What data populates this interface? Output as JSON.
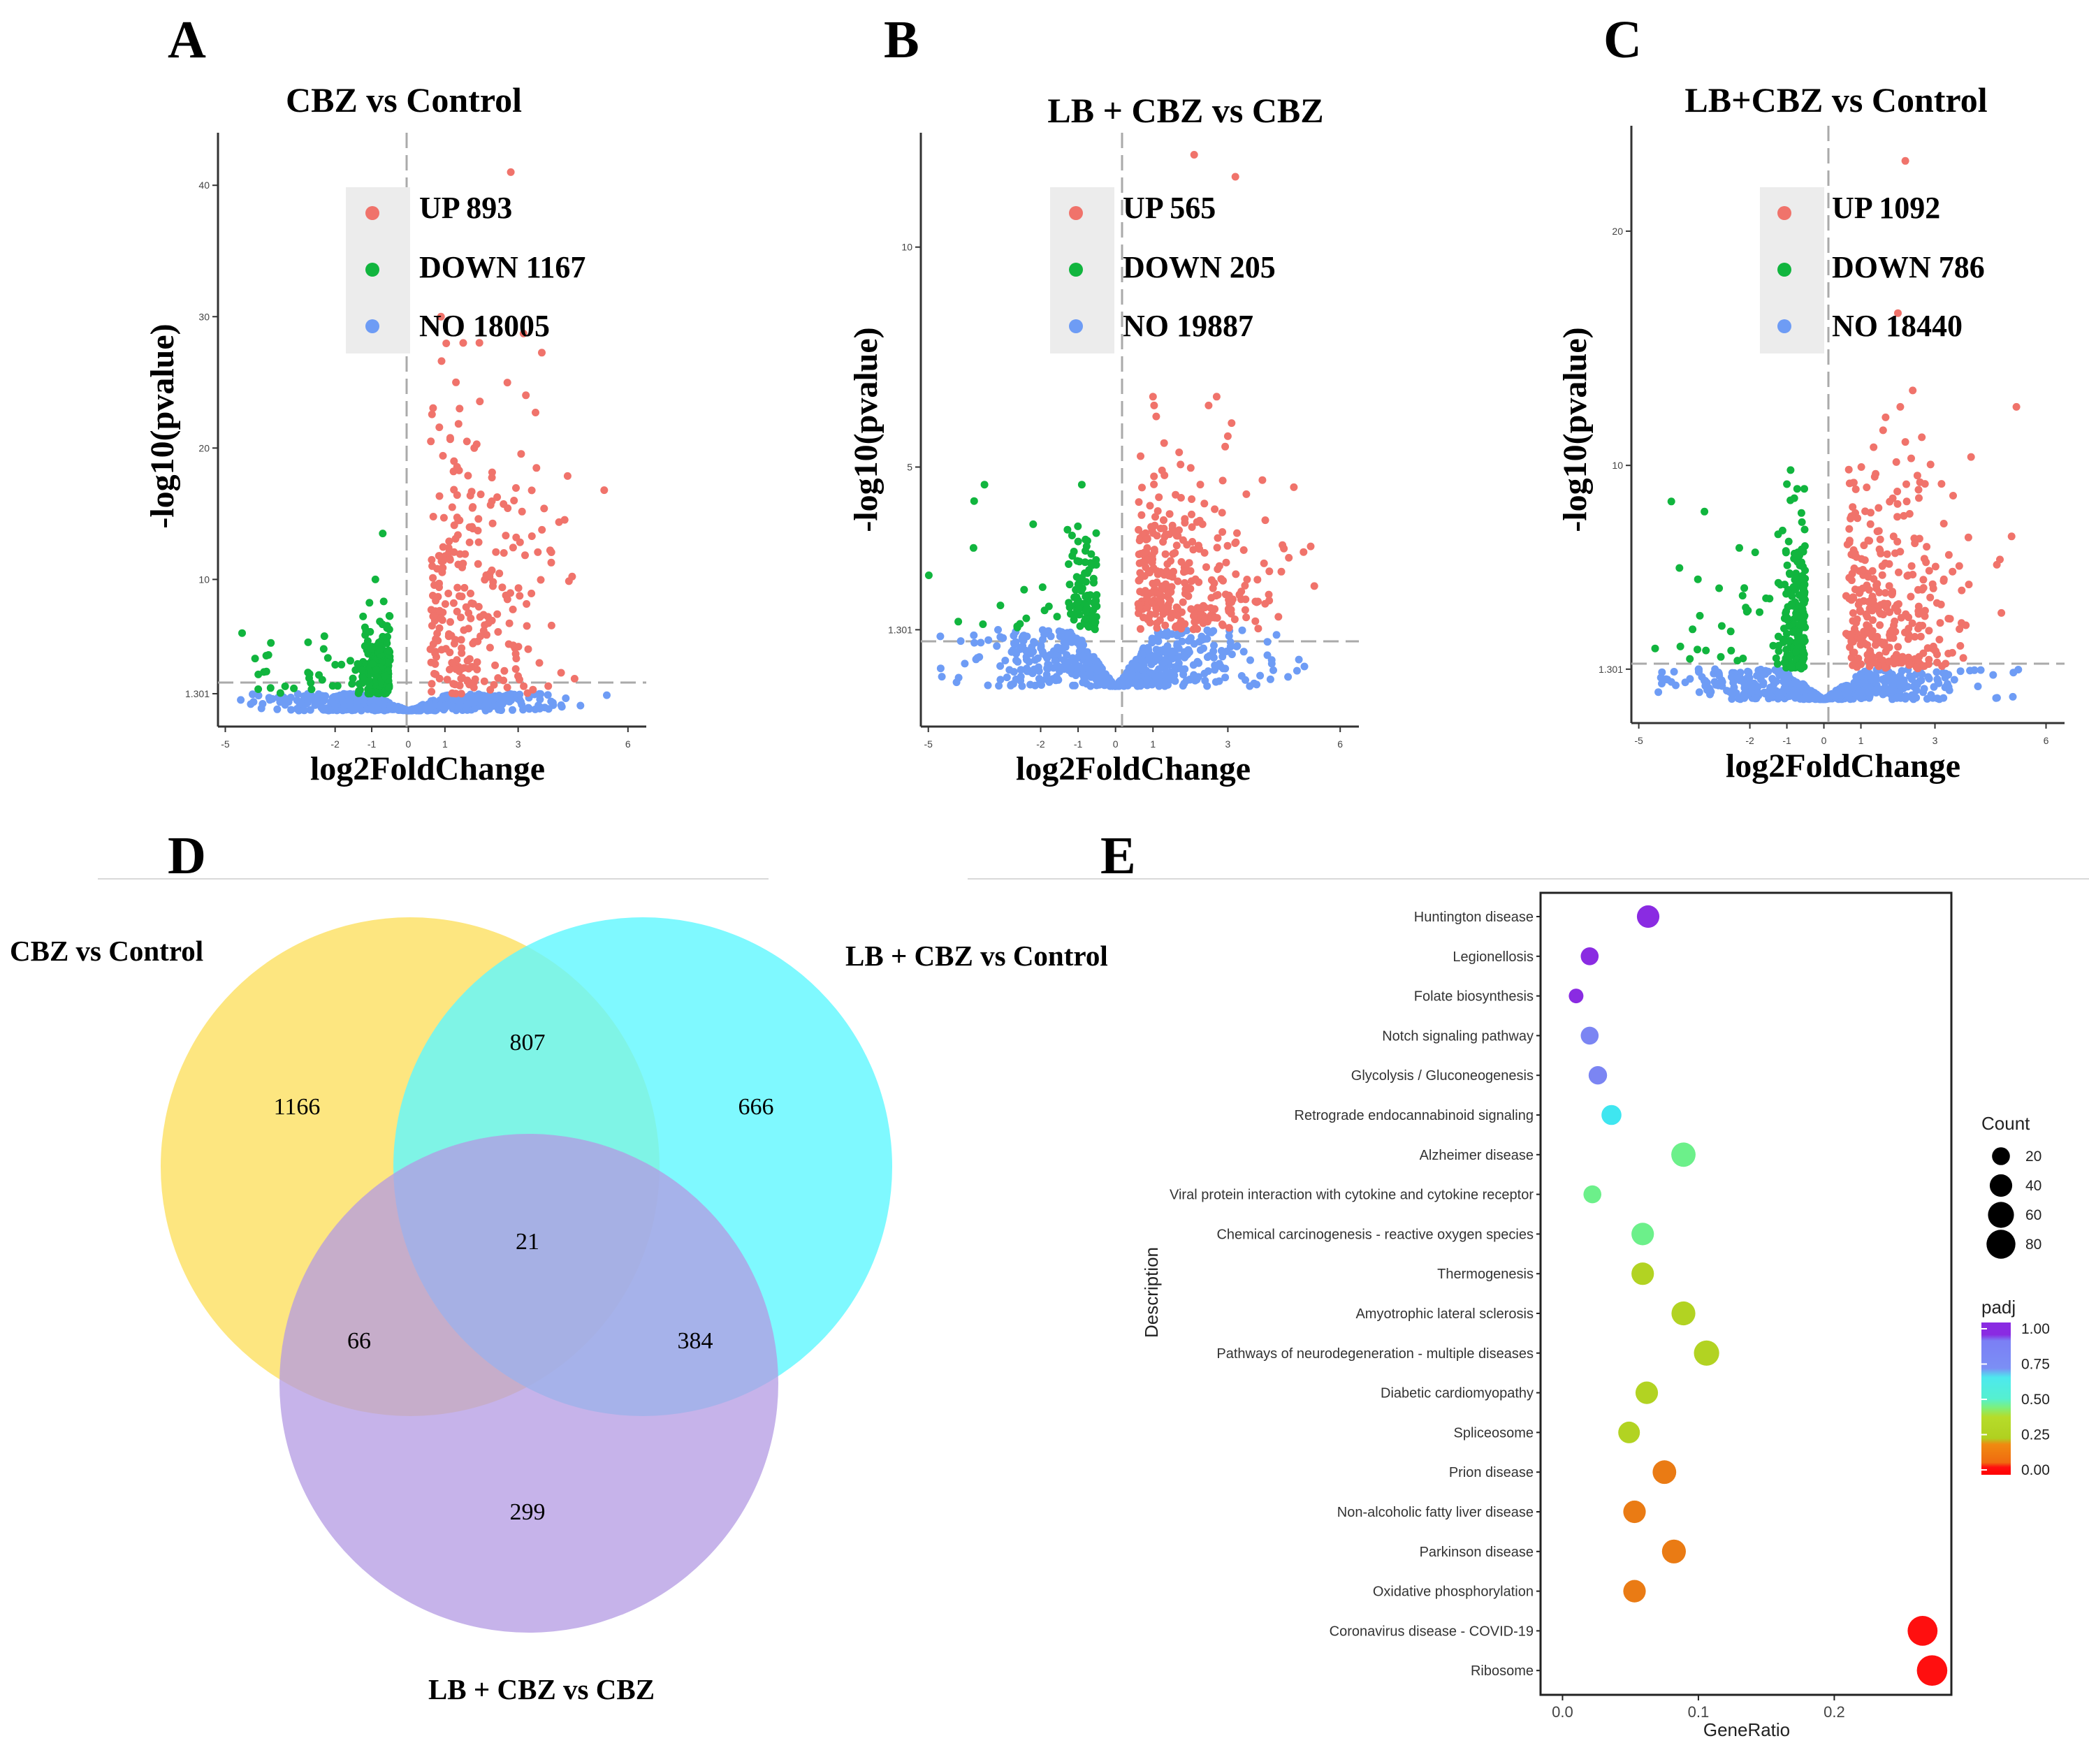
{
  "colors": {
    "up": "#f0736b",
    "down": "#11b53e",
    "no": "#6e9cf5",
    "legend_bg": "#ececec",
    "venn_a": "#fde26a",
    "venn_b": "#5ff8ff",
    "venn_c": "#b39ae3"
  },
  "chart_data": [
    {
      "panel": "A",
      "type": "scatter",
      "subtype": "volcano",
      "title": "CBZ vs Control",
      "xlabel": "log2FoldChange",
      "ylabel": "-log10(pvalue)",
      "xlim": [
        -5.2,
        6.5
      ],
      "ylim": [
        -1.2,
        44
      ],
      "xticks": [
        -5,
        -2,
        -1,
        0,
        1,
        3,
        6
      ],
      "yticks": [
        1.301,
        10,
        20,
        30,
        40
      ],
      "threshold": 1.301,
      "legend": [
        {
          "label": "UP 893",
          "group": "up"
        },
        {
          "label": "DOWN 1167",
          "group": "down"
        },
        {
          "label": "NO 18005",
          "group": "no"
        }
      ],
      "counts": {
        "up": 893,
        "down": 1167,
        "no": 18005
      }
    },
    {
      "panel": "B",
      "type": "scatter",
      "subtype": "volcano",
      "title": "LB + CBZ vs CBZ",
      "xlabel": "log2FoldChange",
      "ylabel": "-log10(pvalue)",
      "xlim": [
        -5.2,
        6.5
      ],
      "ylim": [
        -0.9,
        12.6
      ],
      "xticks": [
        -5,
        -2,
        -1,
        0,
        1,
        3,
        6
      ],
      "yticks": [
        1.301,
        5,
        10
      ],
      "threshold": 1.301,
      "legend": [
        {
          "label": "UP 565",
          "group": "up"
        },
        {
          "label": "DOWN 205",
          "group": "down"
        },
        {
          "label": "NO 19887",
          "group": "no"
        }
      ],
      "counts": {
        "up": 565,
        "down": 205,
        "no": 19887
      }
    },
    {
      "panel": "C",
      "type": "scatter",
      "subtype": "volcano",
      "title": "LB+CBZ vs Control",
      "xlabel": "log2FoldChange",
      "ylabel": "-log10(pvalue)",
      "xlim": [
        -5.2,
        6.5
      ],
      "ylim": [
        -1.0,
        24.5
      ],
      "xticks": [
        -5,
        -2,
        -1,
        0,
        1,
        3,
        6
      ],
      "yticks": [
        1.301,
        10,
        20
      ],
      "threshold": 1.301,
      "legend": [
        {
          "label": "UP 1092",
          "group": "up"
        },
        {
          "label": "DOWN 786",
          "group": "down"
        },
        {
          "label": "NO 18440",
          "group": "no"
        }
      ],
      "counts": {
        "up": 1092,
        "down": 786,
        "no": 18440
      }
    },
    {
      "panel": "D",
      "type": "venn",
      "sets": [
        "CBZ vs Control",
        "LB + CBZ vs Control",
        "LB + CBZ vs CBZ"
      ],
      "regions": [
        {
          "sets": [
            "CBZ vs Control"
          ],
          "value": "1166"
        },
        {
          "sets": [
            "LB + CBZ vs Control"
          ],
          "value": "666"
        },
        {
          "sets": [
            "LB + CBZ vs CBZ"
          ],
          "value": "299"
        },
        {
          "sets": [
            "CBZ vs Control",
            "LB + CBZ vs Control"
          ],
          "value": "807"
        },
        {
          "sets": [
            "CBZ vs Control",
            "LB + CBZ vs CBZ"
          ],
          "value": "66"
        },
        {
          "sets": [
            "LB + CBZ vs Control",
            "LB + CBZ vs CBZ"
          ],
          "value": "384"
        },
        {
          "sets": [
            "CBZ vs Control",
            "LB + CBZ vs Control",
            "LB + CBZ vs CBZ"
          ],
          "value": "21"
        }
      ]
    },
    {
      "panel": "E",
      "type": "scatter",
      "subtype": "dotplot",
      "xlabel": "GeneRatio",
      "ylabel": "Description",
      "xlim": [
        -0.01,
        0.28
      ],
      "xticks": [
        0.0,
        0.1,
        0.2
      ],
      "xtick_labels": [
        "0.0",
        "0.1",
        "0.2"
      ],
      "size_legend_title": "Count",
      "size_legend": [
        20,
        40,
        60,
        80
      ],
      "color_legend_title": "padj",
      "color_legend": [
        "1.00",
        "0.75",
        "0.50",
        "0.25",
        "0.00"
      ],
      "terms": [
        {
          "label": "Huntington disease",
          "gene_ratio": 0.063,
          "count": 40,
          "padj": 0.98
        },
        {
          "label": "Legionellosis",
          "gene_ratio": 0.02,
          "count": 20,
          "padj": 0.97
        },
        {
          "label": "Folate biosynthesis",
          "gene_ratio": 0.01,
          "count": 10,
          "padj": 0.96
        },
        {
          "label": "Notch signaling pathway",
          "gene_ratio": 0.02,
          "count": 20,
          "padj": 0.82
        },
        {
          "label": "Glycolysis / Gluconeogenesis",
          "gene_ratio": 0.026,
          "count": 22,
          "padj": 0.8
        },
        {
          "label": "Retrograde endocannabinoid signaling",
          "gene_ratio": 0.036,
          "count": 28,
          "padj": 0.68
        },
        {
          "label": "Alzheimer disease",
          "gene_ratio": 0.089,
          "count": 50,
          "padj": 0.5
        },
        {
          "label": "Viral protein interaction with cytokine and cytokine receptor",
          "gene_ratio": 0.022,
          "count": 20,
          "padj": 0.47
        },
        {
          "label": "Chemical carcinogenesis - reactive oxygen species",
          "gene_ratio": 0.059,
          "count": 40,
          "padj": 0.46
        },
        {
          "label": "Thermogenesis",
          "gene_ratio": 0.059,
          "count": 40,
          "padj": 0.33
        },
        {
          "label": "Amyotrophic lateral sclerosis",
          "gene_ratio": 0.089,
          "count": 48,
          "padj": 0.3
        },
        {
          "label": "Pathways of neurodegeneration - multiple diseases",
          "gene_ratio": 0.106,
          "count": 56,
          "padj": 0.28
        },
        {
          "label": "Diabetic cardiomyopathy",
          "gene_ratio": 0.062,
          "count": 40,
          "padj": 0.27
        },
        {
          "label": "Spliceosome",
          "gene_ratio": 0.049,
          "count": 36,
          "padj": 0.26
        },
        {
          "label": "Prion disease",
          "gene_ratio": 0.075,
          "count": 46,
          "padj": 0.16
        },
        {
          "label": "Non-alcoholic fatty liver disease",
          "gene_ratio": 0.053,
          "count": 40,
          "padj": 0.15
        },
        {
          "label": "Parkinson disease",
          "gene_ratio": 0.082,
          "count": 48,
          "padj": 0.14
        },
        {
          "label": "Oxidative phosphorylation",
          "gene_ratio": 0.053,
          "count": 40,
          "padj": 0.14
        },
        {
          "label": "Coronavirus disease - COVID-19",
          "gene_ratio": 0.265,
          "count": 88,
          "padj": 0.01
        },
        {
          "label": "Ribosome",
          "gene_ratio": 0.272,
          "count": 92,
          "padj": 0.0
        }
      ]
    }
  ],
  "panel_labels": {
    "a": "A",
    "b": "B",
    "c": "C",
    "d": "D",
    "e": "E"
  }
}
